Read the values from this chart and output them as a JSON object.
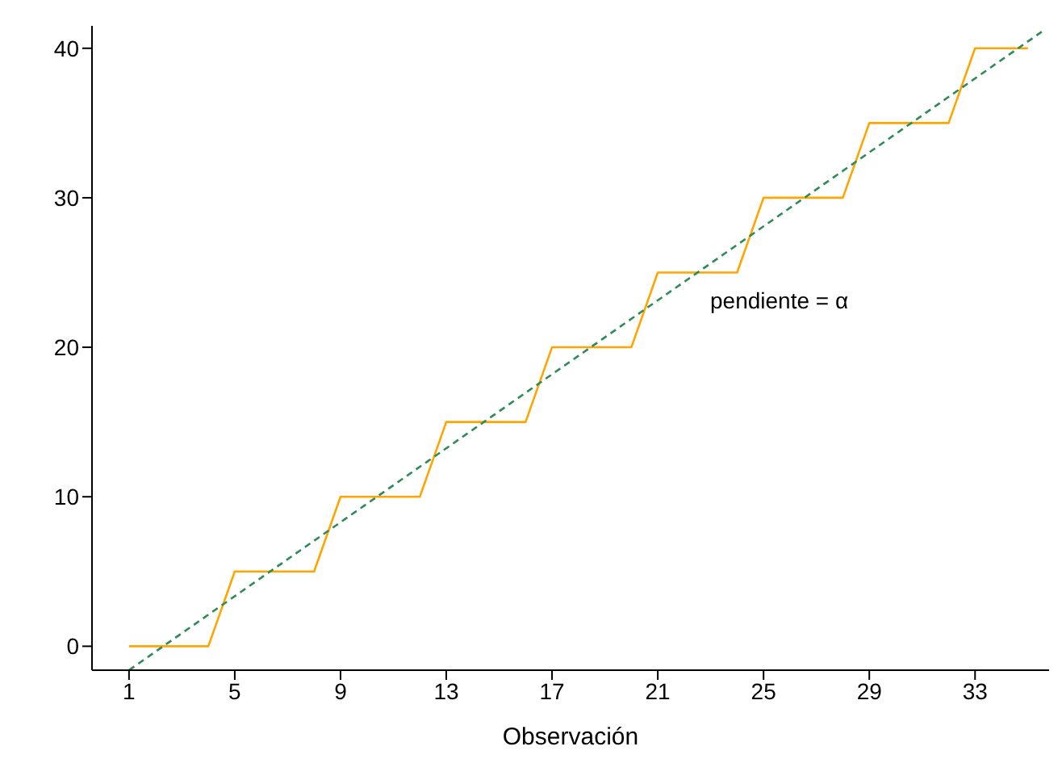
{
  "chart_data": {
    "type": "line",
    "xlabel": "Observación",
    "xlim": [
      -0.4,
      35.8
    ],
    "xticks": [
      1,
      5,
      9,
      13,
      17,
      21,
      25,
      29,
      33
    ],
    "ylim": [
      -1.6,
      41.5
    ],
    "yticks": [
      0,
      10,
      20,
      30,
      40
    ],
    "grid": false,
    "legend": false,
    "series": [
      {
        "color": "#ffa500",
        "x": [
          1,
          2,
          3,
          4,
          5,
          6,
          7,
          8,
          9,
          10,
          11,
          12,
          13,
          14,
          15,
          16,
          17,
          18,
          19,
          20,
          21,
          22,
          23,
          24,
          25,
          26,
          27,
          28,
          29,
          30,
          31,
          32,
          33,
          34,
          35
        ],
        "values": [
          0,
          0,
          0,
          0,
          5,
          5,
          5,
          5,
          10,
          10,
          10,
          10,
          15,
          15,
          15,
          15,
          20,
          20,
          20,
          20,
          25,
          25,
          25,
          25,
          30,
          30,
          30,
          30,
          35,
          35,
          35,
          35,
          40,
          40,
          40
        ]
      },
      {
        "color": "#2e8b57",
        "line_style": "dashed",
        "x": [
          1,
          35.6
        ],
        "values": [
          -1.6,
          41.2
        ]
      }
    ],
    "annotations": [
      "pendiente = α"
    ]
  }
}
